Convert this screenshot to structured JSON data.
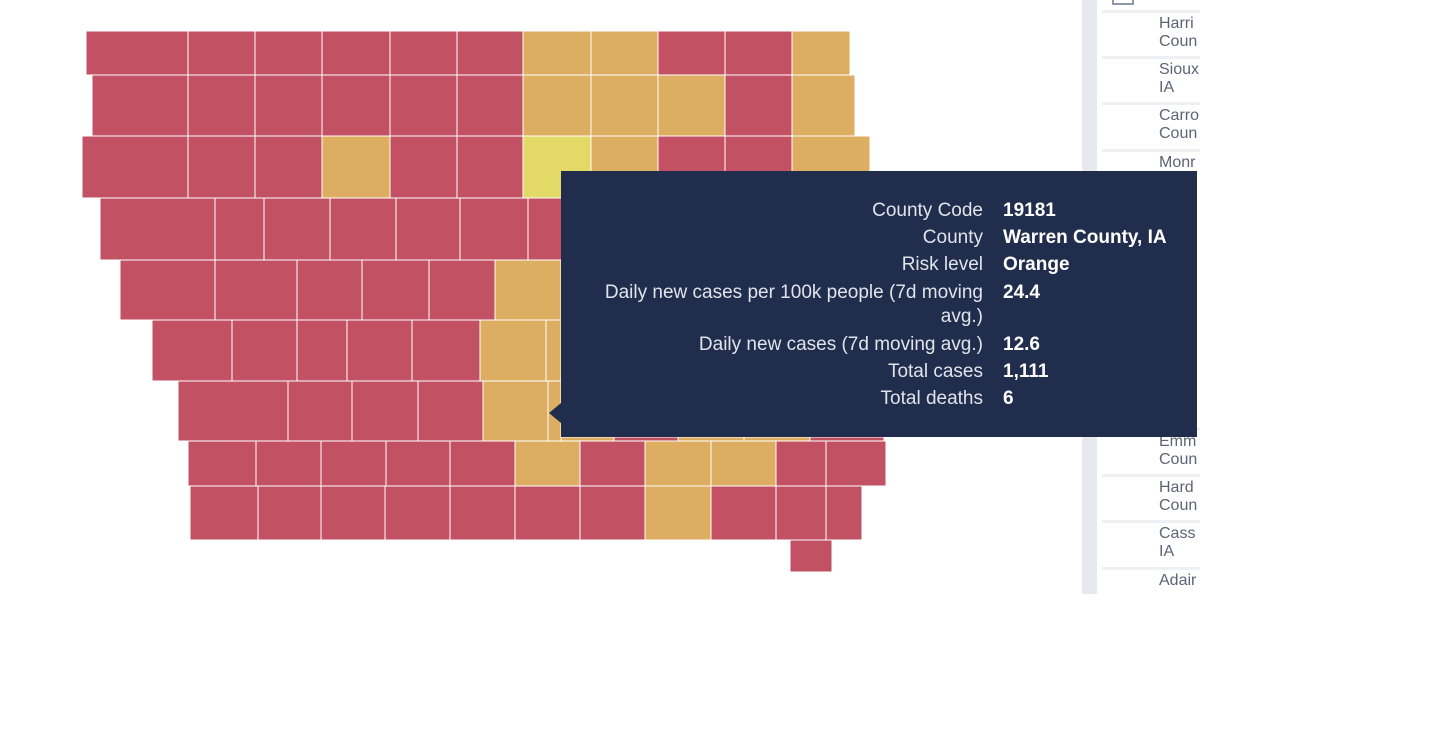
{
  "map": {
    "colors": {
      "red": "#c25164",
      "orange": "#ddae62",
      "yellow": "#e3d966"
    }
  },
  "tooltip": {
    "rows": [
      {
        "key": "County Code",
        "value": "19181"
      },
      {
        "key": "County",
        "value": "Warren County, IA"
      },
      {
        "key": "Risk level",
        "value": "Orange"
      },
      {
        "key": "Daily new cases per 100k people (7d moving avg.)",
        "value": "24.4"
      },
      {
        "key": "Daily new cases (7d moving avg.)",
        "value": "12.6"
      },
      {
        "key": "Total cases",
        "value": "1,111"
      },
      {
        "key": "Total deaths",
        "value": "6"
      }
    ]
  },
  "side_panel": {
    "items": [
      {
        "label": "Harri\nCoun"
      },
      {
        "label": "Sioux\nIA"
      },
      {
        "label": "Carro\nCoun"
      },
      {
        "label": "Monr\nCoun"
      },
      {
        "label": "Emm\nCoun"
      },
      {
        "label": "Hard\nCoun"
      },
      {
        "label": "Cass\nIA"
      },
      {
        "label": "Adair"
      }
    ]
  }
}
